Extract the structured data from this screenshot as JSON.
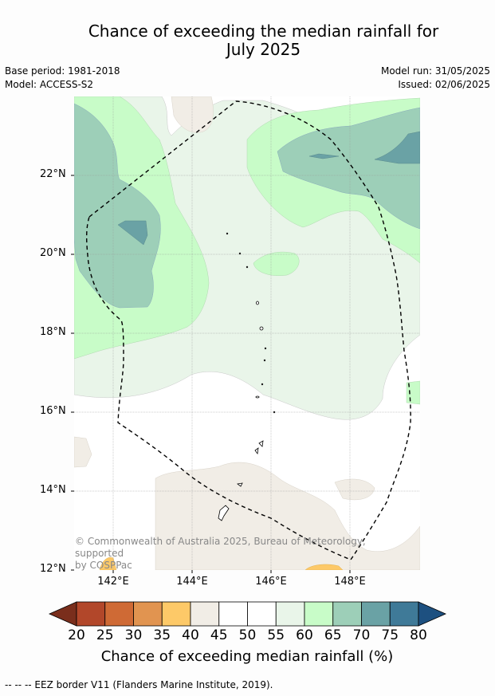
{
  "title_line1": "Chance of exceeding the median rainfall for",
  "title_line2": "July 2025",
  "base_period": "Base period: 1981-2018",
  "model": "Model: ACCESS-S2",
  "model_run": "Model run: 31/05/2025",
  "issued": "Issued: 02/06/2025",
  "latitude_labels": [
    "22°N",
    "20°N",
    "18°N",
    "16°N",
    "14°N",
    "12°N"
  ],
  "longitude_labels": [
    "142°E",
    "144°E",
    "146°E",
    "148°E"
  ],
  "copyright_line1": "© Commonwealth of Australia 2025, Bureau of Meteorology, supported",
  "copyright_line2": "by COSPPac",
  "colorbar": {
    "ticks": [
      "20",
      "25",
      "30",
      "35",
      "40",
      "45",
      "50",
      "55",
      "60",
      "65",
      "70",
      "75",
      "80"
    ],
    "label": "Chance of exceeding median rainfall (%)",
    "colors": [
      "#7a2e1c",
      "#b2472a",
      "#cf6a35",
      "#e19450",
      "#fdc968",
      "#f1ede6",
      "#ffffff",
      "#ffffff",
      "#e9f5e9",
      "#c8fcc8",
      "#9dcfb8",
      "#6aa2a5",
      "#3f7a98",
      "#1d5080"
    ]
  },
  "footnote": "--  --  -- EEZ border V11 (Flanders Marine Institute, 2019)."
}
